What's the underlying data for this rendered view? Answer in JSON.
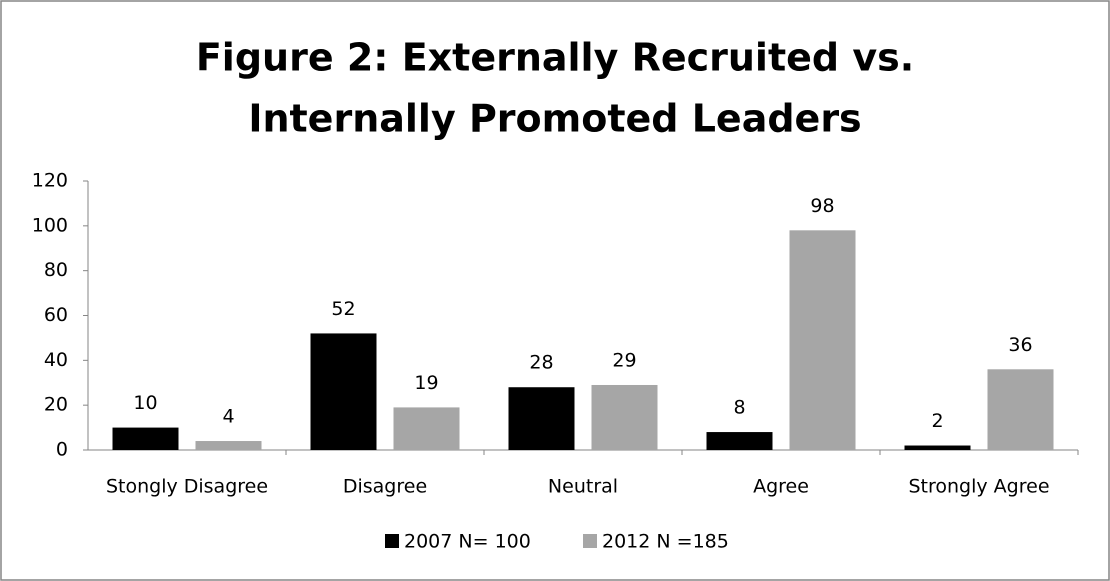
{
  "chart_data": {
    "type": "bar",
    "title": [
      "Figure 2: Externally Recruited vs.",
      "Internally Promoted Leaders"
    ],
    "categories": [
      "Stongly Disagree",
      "Disagree",
      "Neutral",
      "Agree",
      "Strongly Agree"
    ],
    "series": [
      {
        "name": "2007 N= 100",
        "color": "#000000",
        "values": [
          10,
          52,
          28,
          8,
          2
        ]
      },
      {
        "name": "2012 N =185",
        "color": "#a6a6a6",
        "values": [
          4,
          19,
          29,
          98,
          36
        ]
      }
    ],
    "ylim": [
      0,
      120
    ],
    "yticks": [
      0,
      20,
      40,
      60,
      80,
      100,
      120
    ],
    "grid": false,
    "legend": "bottom"
  }
}
